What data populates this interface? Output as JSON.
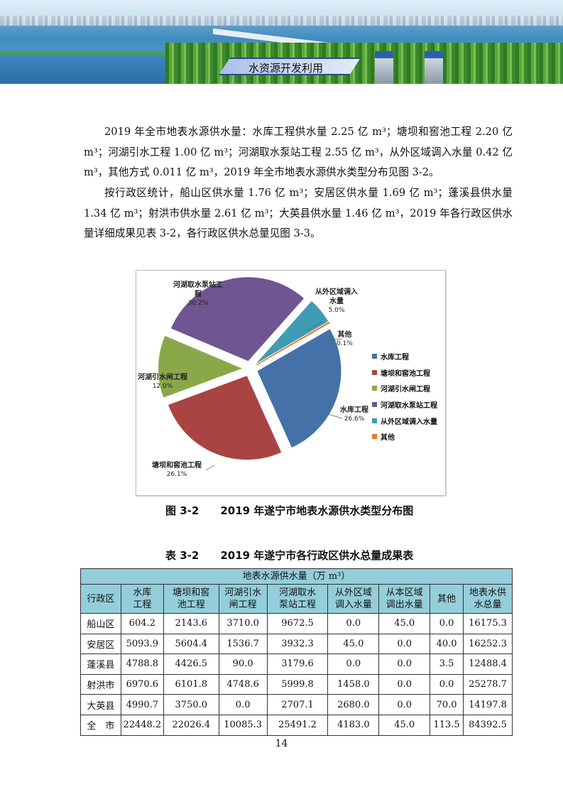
{
  "header": {
    "section_title": "水资源开发利用"
  },
  "paragraphs": [
    "2019 年全市地表水源供水量：水库工程供水量 2.25 亿 m³；塘坝和窖池工程 2.20 亿 m³；河湖引水工程 1.00 亿 m³；河湖取水泵站工程 2.55 亿 m³，从外区域调入水量 0.42 亿 m³，其他方式 0.011 亿 m³，2019 年全市地表水源供水类型分布见图 3-2。",
    "按行政区统计，船山区供水量 1.76 亿 m³；安居区供水量 1.69 亿 m³；蓬溪县供水量 1.34 亿 m³；射洪市供水量 2.61 亿 m³；大英县供水量 1.46 亿 m³，2019 年各行政区供水量详细成果见表 3-2，各行政区供水总量见图 3-3。"
  ],
  "chart_data": {
    "type": "pie",
    "title": "",
    "categories": [
      "水库工程",
      "塘坝和窖池工程",
      "河湖引水闸工程",
      "河湖取水泵站工程",
      "从外区域调入水量",
      "其他"
    ],
    "slice_labels": [
      "水库工程",
      "塘坝和窖池工程",
      "河湖引水闸工程",
      "河湖取水泵站工程",
      "从外区域调入水量",
      "其他"
    ],
    "values": [
      26.6,
      26.1,
      12.0,
      30.2,
      5.0,
      0.1
    ],
    "value_labels": [
      "26.6%",
      "26.1%",
      "12.0%",
      "30.2%",
      "5.0%",
      "0.1%"
    ],
    "colors": [
      "#4472a8",
      "#a94442",
      "#8aa84a",
      "#6f5591",
      "#3e9db3",
      "#e07b2f"
    ],
    "exploded": true,
    "legend_position": "right"
  },
  "figure_caption": "图 3-2　　2019 年遂宁市地表水源供水类型分布图",
  "table": {
    "caption": "表 3-2　　2019 年遂宁市各行政区供水总量成果表",
    "group_header": "地表水源供水量（万 m³）",
    "columns": [
      "行政区",
      "水库工程",
      "塘坝和窖池工程",
      "河湖引水闸工程",
      "河湖取水泵站工程",
      "从外区域调入水量",
      "从本区域调出水量",
      "其他",
      "地表水供水总量"
    ],
    "rows": [
      [
        "船山区",
        "604.2",
        "2143.6",
        "3710.0",
        "9672.5",
        "0.0",
        "45.0",
        "0.0",
        "16175.3"
      ],
      [
        "安居区",
        "5093.9",
        "5604.4",
        "1536.7",
        "3932.3",
        "45.0",
        "0.0",
        "40.0",
        "16252.3"
      ],
      [
        "蓬溪县",
        "4788.8",
        "4426.5",
        "90.0",
        "3179.6",
        "0.0",
        "0.0",
        "3.5",
        "12488.4"
      ],
      [
        "射洪市",
        "6970.6",
        "6101.8",
        "4748.6",
        "5999.8",
        "1458.0",
        "0.0",
        "0.0",
        "25278.7"
      ],
      [
        "大英县",
        "4990.7",
        "3750.0",
        "0.0",
        "2707.1",
        "2680.0",
        "0.0",
        "70.0",
        "14197.8"
      ],
      [
        "全　市",
        "22448.2",
        "22026.4",
        "10085.3",
        "25491.2",
        "4183.0",
        "45.0",
        "113.5",
        "84392.5"
      ]
    ]
  },
  "page_number": "14"
}
